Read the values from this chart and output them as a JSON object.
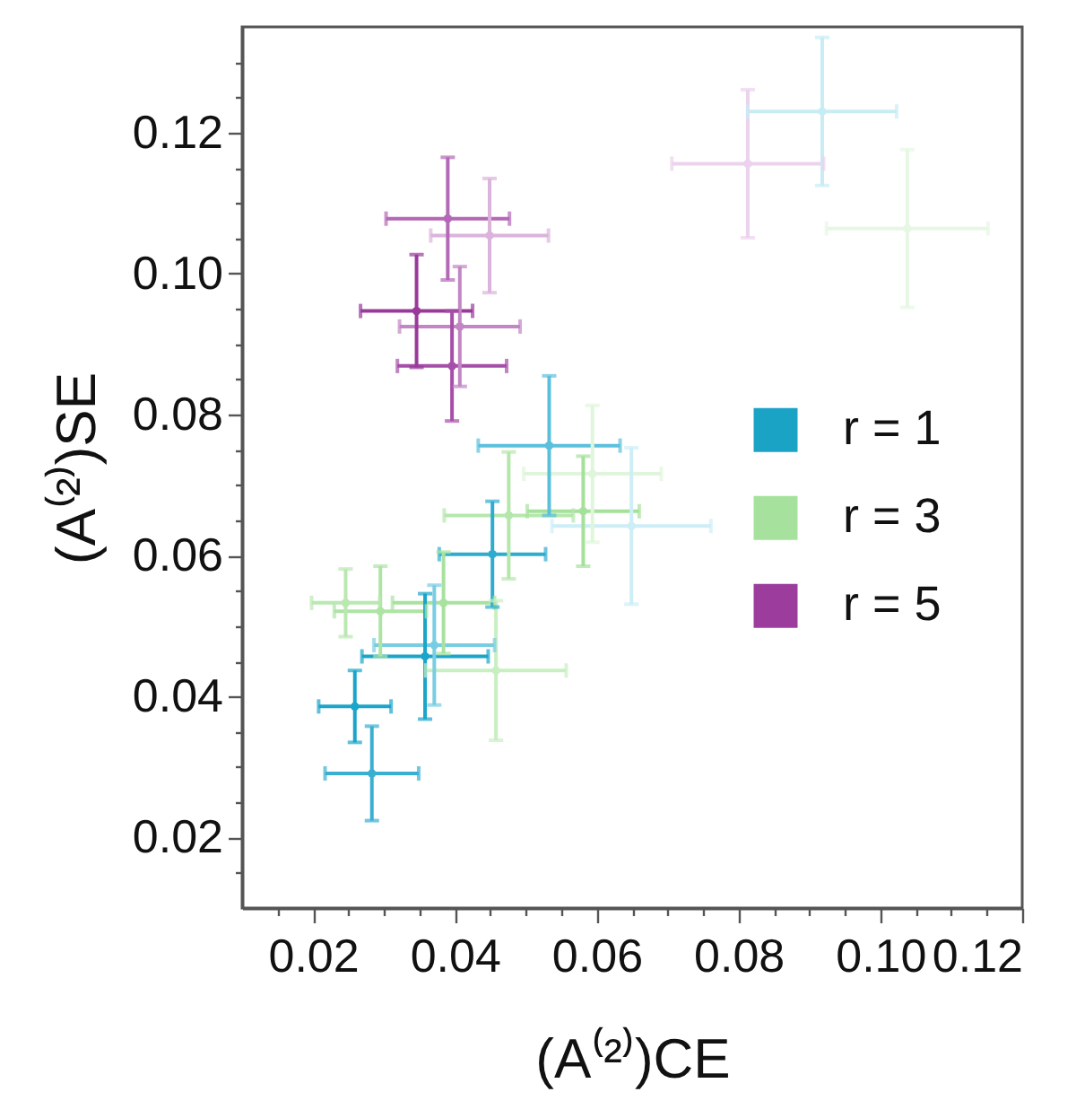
{
  "chart_data": {
    "type": "scatter",
    "xlabel": "(A⁽²⁾)CE",
    "ylabel": "(A⁽²⁾)SE",
    "xlim": [
      0.01,
      0.12
    ],
    "ylim": [
      0.01,
      0.135
    ],
    "xticks": [
      {
        "value": 0.015,
        "label": null
      },
      0.02,
      {
        "value": 0.025,
        "label": null
      },
      {
        "value": 0.03,
        "label": null
      },
      {
        "value": 0.035,
        "label": null
      },
      0.04,
      {
        "value": 0.045,
        "label": null
      },
      {
        "value": 0.05,
        "label": null
      },
      {
        "value": 0.055,
        "label": null
      },
      0.06,
      {
        "value": 0.065,
        "label": null
      },
      {
        "value": 0.07,
        "label": null
      },
      {
        "value": 0.075,
        "label": null
      },
      0.08,
      {
        "value": 0.085,
        "label": null
      },
      {
        "value": 0.09,
        "label": null
      },
      {
        "value": 0.095,
        "label": null
      },
      {
        "value": 0.1,
        "label": "0.10"
      },
      {
        "value": 0.105,
        "label": null
      },
      {
        "value": 0.11,
        "label": null
      },
      {
        "value": 0.115,
        "label": null
      },
      0.12
    ],
    "yticks": [
      {
        "value": 0.015,
        "label": null
      },
      0.02,
      {
        "value": 0.025,
        "label": null
      },
      {
        "value": 0.03,
        "label": null
      },
      {
        "value": 0.035,
        "label": null
      },
      0.04,
      {
        "value": 0.045,
        "label": null
      },
      {
        "value": 0.05,
        "label": null
      },
      {
        "value": 0.055,
        "label": null
      },
      0.06,
      {
        "value": 0.065,
        "label": null
      },
      {
        "value": 0.07,
        "label": null
      },
      {
        "value": 0.075,
        "label": null
      },
      0.08,
      {
        "value": 0.085,
        "label": null
      },
      {
        "value": 0.09,
        "label": null
      },
      {
        "value": 0.095,
        "label": null
      },
      {
        "value": 0.1,
        "label": "0.10"
      },
      {
        "value": 0.105,
        "label": null
      },
      {
        "value": 0.11,
        "label": null
      },
      {
        "value": 0.115,
        "label": null
      },
      0.12,
      {
        "value": 0.125,
        "label": null
      },
      {
        "value": 0.13,
        "label": null
      }
    ],
    "marker": "circle",
    "legend": "right",
    "series": [
      {
        "name": "r = 1",
        "color": "#1ba3c6",
        "x": [
          0.0259,
          0.0283,
          0.0358,
          0.0371,
          0.0453,
          0.0533,
          0.0649,
          0.0918
        ],
        "values": [
          0.0386,
          0.0291,
          0.0457,
          0.0473,
          0.0602,
          0.0756,
          0.0642,
          0.123
        ],
        "errors": [
          0.0051,
          0.0067,
          0.0089,
          0.0085,
          0.0075,
          0.0099,
          0.0111,
          0.0105
        ],
        "xerrors": [
          0.0051,
          0.0066,
          0.0089,
          0.0085,
          0.0075,
          0.01,
          0.0112,
          0.0105
        ],
        "colors": [
          "#1aa5c9",
          "#3aafd1",
          "#1aa5c9",
          "#79cde3",
          "#2eacd0",
          "#5bc0dc",
          "#cdeef6",
          "#c8ecf4"
        ]
      },
      {
        "name": "r = 3",
        "color": "#a6e29d",
        "x": [
          0.0246,
          0.0295,
          0.0384,
          0.0458,
          0.0476,
          0.0581,
          0.0594,
          0.1038
        ],
        "values": [
          0.0533,
          0.0521,
          0.0533,
          0.0437,
          0.0657,
          0.0663,
          0.0716,
          0.1064
        ],
        "errors": [
          0.0048,
          0.0064,
          0.0072,
          0.0099,
          0.009,
          0.0078,
          0.0097,
          0.0112
        ],
        "xerrors": [
          0.0048,
          0.0065,
          0.0072,
          0.0099,
          0.0091,
          0.0079,
          0.0097,
          0.0114
        ],
        "colors": [
          "#b9e8b1",
          "#ade4a4",
          "#a8e29e",
          "#c8efc2",
          "#b5e7ac",
          "#a6e19c",
          "#e0f6dc",
          "#e6f8e3"
        ]
      },
      {
        "name": "r = 5",
        "color": "#9c3d9d",
        "x": [
          0.0346,
          0.039,
          0.0407,
          0.0396,
          0.0449,
          0.0813
        ],
        "values": [
          0.0947,
          0.1078,
          0.0925,
          0.0869,
          0.1054,
          0.1156
        ],
        "errors": [
          0.008,
          0.0087,
          0.0085,
          0.0078,
          0.0081,
          0.0105
        ],
        "xerrors": [
          0.0079,
          0.0087,
          0.0085,
          0.0077,
          0.0083,
          0.0107
        ],
        "colors": [
          "#993a9b",
          "#b468b6",
          "#c286c4",
          "#a64fa8",
          "#dbb3dc",
          "#ecd2ee"
        ]
      }
    ]
  }
}
